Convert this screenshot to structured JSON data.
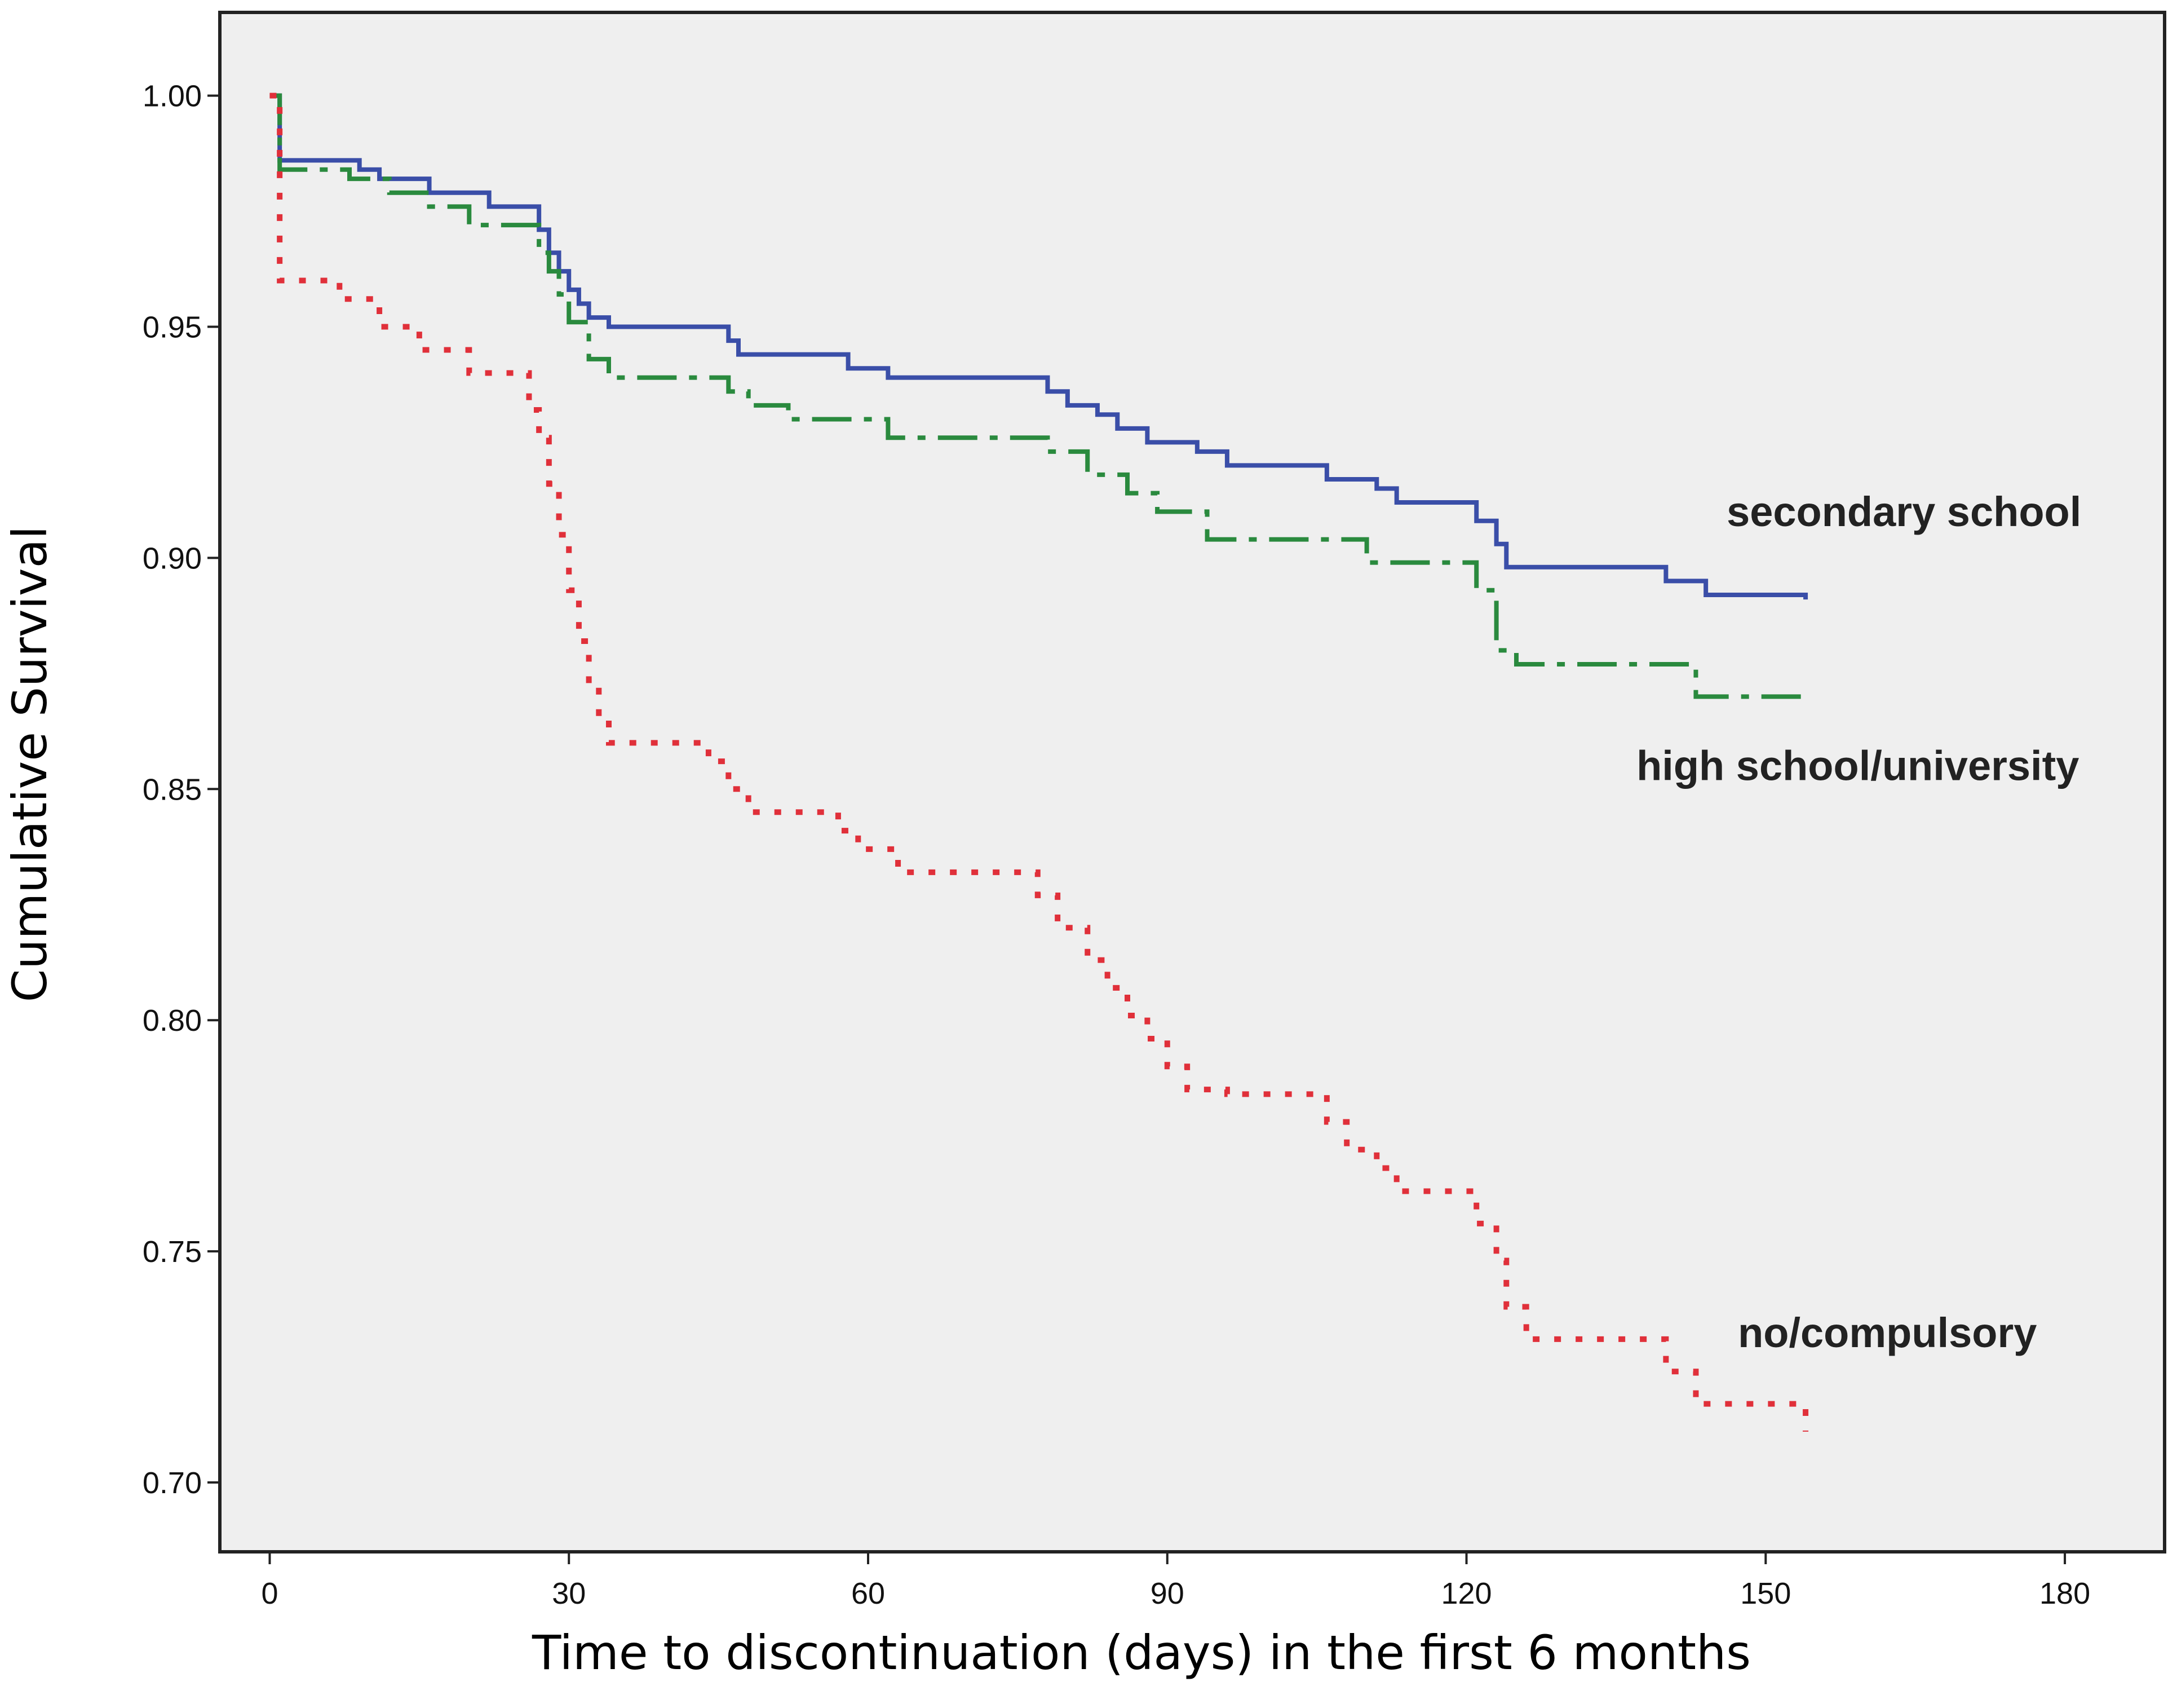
{
  "chart_data": {
    "type": "line",
    "subtype": "kaplan-meier step",
    "title": "",
    "xlabel": "Time to discontinuation (days) in the first 6 months",
    "ylabel": "Cumulative Survival",
    "xlim": [
      -5,
      190
    ],
    "ylim": [
      0.685,
      1.018
    ],
    "xticks": [
      0,
      30,
      60,
      90,
      120,
      150,
      180
    ],
    "xtick_labels": [
      "0",
      "30",
      "60",
      "90",
      "120",
      "150",
      "180"
    ],
    "yticks": [
      0.7,
      0.75,
      0.8,
      0.85,
      0.9,
      0.95,
      1.0
    ],
    "ytick_labels": [
      "0.70",
      "0.75",
      "0.80",
      "0.85",
      "0.90",
      "0.95",
      "1.00"
    ],
    "grid": false,
    "background": "#efefef",
    "series": [
      {
        "name": "secondary school",
        "color": "#3a4ea8",
        "style": "solid",
        "x": [
          0,
          1,
          9,
          11,
          16,
          22,
          27,
          28,
          29,
          30,
          31,
          32,
          34,
          46,
          47,
          58,
          62,
          78,
          80,
          83,
          85,
          88,
          93,
          96,
          106,
          111,
          113,
          121,
          123,
          124,
          140,
          144,
          154
        ],
        "y": [
          1.0,
          0.986,
          0.984,
          0.982,
          0.979,
          0.976,
          0.971,
          0.966,
          0.962,
          0.958,
          0.955,
          0.952,
          0.95,
          0.947,
          0.944,
          0.941,
          0.939,
          0.936,
          0.933,
          0.931,
          0.928,
          0.925,
          0.923,
          0.92,
          0.917,
          0.915,
          0.912,
          0.908,
          0.903,
          0.898,
          0.895,
          0.892,
          0.891
        ]
      },
      {
        "name": "high school/university",
        "color": "#2a8a3e",
        "style": "dashdot",
        "x": [
          0,
          1,
          8,
          12,
          16,
          20,
          27,
          28,
          29,
          30,
          32,
          34,
          46,
          48,
          52,
          62,
          78,
          82,
          86,
          89,
          94,
          110,
          121,
          123,
          125,
          143,
          154
        ],
        "y": [
          1.0,
          0.984,
          0.982,
          0.979,
          0.976,
          0.972,
          0.966,
          0.962,
          0.957,
          0.951,
          0.943,
          0.939,
          0.936,
          0.933,
          0.93,
          0.926,
          0.923,
          0.918,
          0.914,
          0.91,
          0.904,
          0.899,
          0.893,
          0.88,
          0.877,
          0.87,
          0.869
        ]
      },
      {
        "name": "no/compulsory",
        "color": "#e0303a",
        "style": "dotted",
        "x": [
          0,
          1,
          7,
          11,
          15,
          20,
          26,
          27,
          28,
          29,
          30,
          31,
          32,
          33,
          34,
          44,
          46,
          48,
          57,
          59,
          63,
          77,
          79,
          82,
          84,
          86,
          88,
          90,
          92,
          96,
          106,
          108,
          111,
          113,
          121,
          123,
          124,
          126,
          140,
          143,
          154
        ],
        "y": [
          1.0,
          0.96,
          0.956,
          0.95,
          0.945,
          0.94,
          0.932,
          0.926,
          0.916,
          0.905,
          0.893,
          0.882,
          0.872,
          0.865,
          0.86,
          0.856,
          0.85,
          0.845,
          0.841,
          0.837,
          0.832,
          0.827,
          0.82,
          0.813,
          0.807,
          0.801,
          0.796,
          0.79,
          0.785,
          0.784,
          0.778,
          0.772,
          0.768,
          0.763,
          0.756,
          0.748,
          0.738,
          0.731,
          0.724,
          0.717,
          0.711
        ]
      }
    ],
    "annotations": [
      {
        "text": "secondary school",
        "series": "secondary school"
      },
      {
        "text": "high school/university",
        "series": "high school/university"
      },
      {
        "text": "no/compulsory",
        "series": "no/compulsory"
      }
    ]
  }
}
